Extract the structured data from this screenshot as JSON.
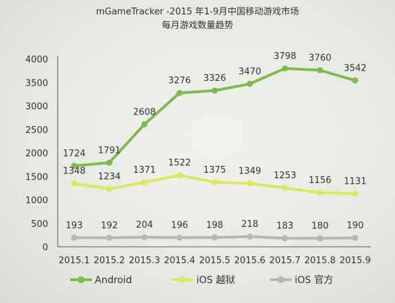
{
  "title": "mGameTracker  -2015 年1-9月中国移动游戏市场",
  "subtitle": "每月游戏数量趋势",
  "chart_data": {
    "type": "line",
    "title": "mGameTracker  -2015 年1-9月中国移动游戏市场",
    "subtitle": "每月游戏数量趋势",
    "categories": [
      "2015.1",
      "2015.2",
      "2015.3",
      "2015.4",
      "2015.5",
      "2015.6",
      "2015.7",
      "2015.8",
      "2015.9"
    ],
    "yticks": [
      0,
      500,
      1000,
      1500,
      2000,
      2500,
      3000,
      3500,
      4000
    ],
    "ylim": [
      0,
      4000
    ],
    "grid": false,
    "legend_position": "bottom",
    "series": [
      {
        "name": "Android",
        "color": "#7dbb4a",
        "values": [
          1724,
          1791,
          2608,
          3276,
          3326,
          3470,
          3798,
          3760,
          3542
        ]
      },
      {
        "name": "iOS 越狱",
        "color": "#dce85a",
        "values": [
          1348,
          1234,
          1371,
          1522,
          1375,
          1349,
          1253,
          1156,
          1131
        ]
      },
      {
        "name": "iOS 官方",
        "color": "#b6b6b6",
        "values": [
          193,
          192,
          204,
          196,
          198,
          218,
          183,
          180,
          190
        ]
      }
    ]
  }
}
